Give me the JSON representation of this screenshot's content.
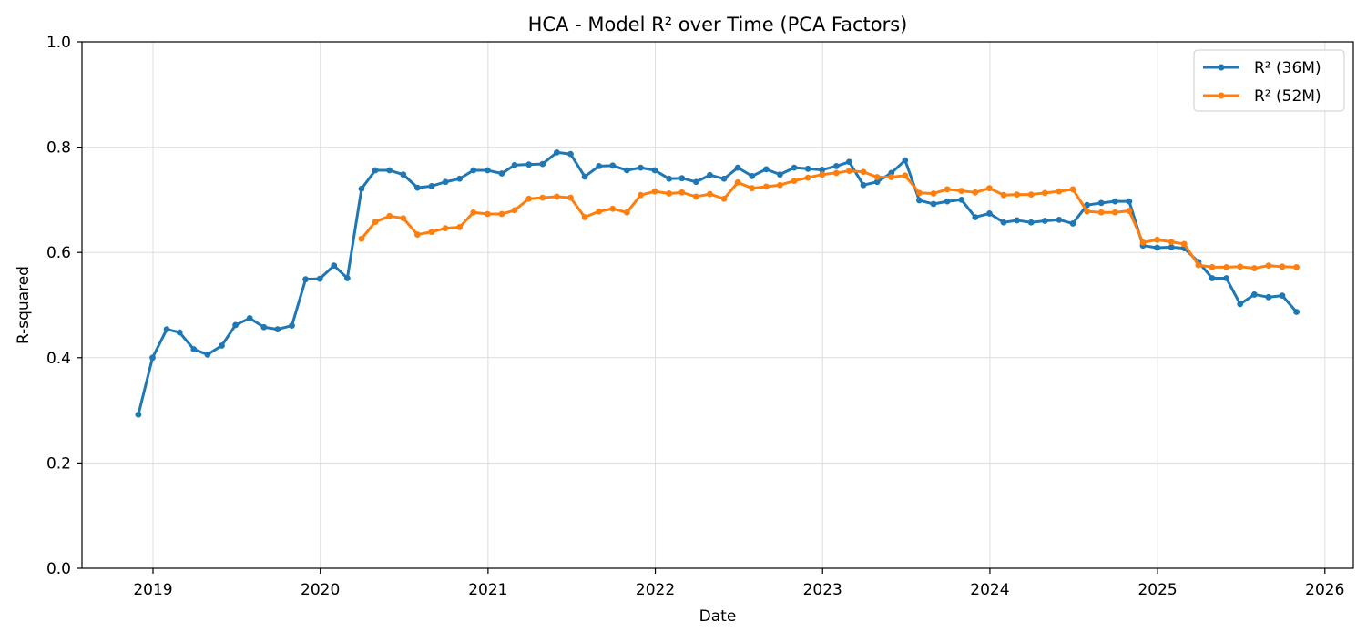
{
  "chart_data": {
    "type": "line",
    "title": "HCA - Model R² over Time (PCA Factors)",
    "xlabel": "Date",
    "ylabel": "R-squared",
    "xlim": [
      "2018-07-30",
      "2026-03-04"
    ],
    "ylim": [
      0.0,
      1.0
    ],
    "x_ticks": [
      "2019",
      "2020",
      "2021",
      "2022",
      "2023",
      "2024",
      "2025",
      "2026"
    ],
    "y_ticks": [
      "0.0",
      "0.2",
      "0.4",
      "0.6",
      "0.8",
      "1.0"
    ],
    "grid": true,
    "legend_position": "top-right",
    "series": [
      {
        "name": "R² (36M)",
        "color": "#1f77b4",
        "x": [
          "2018-11-30",
          "2018-12-31",
          "2019-01-31",
          "2019-02-28",
          "2019-03-31",
          "2019-04-30",
          "2019-05-31",
          "2019-06-30",
          "2019-07-31",
          "2019-08-31",
          "2019-09-30",
          "2019-10-31",
          "2019-11-30",
          "2019-12-31",
          "2020-01-31",
          "2020-02-29",
          "2020-03-31",
          "2020-04-30",
          "2020-05-31",
          "2020-06-30",
          "2020-07-31",
          "2020-08-31",
          "2020-09-30",
          "2020-10-31",
          "2020-11-30",
          "2020-12-31",
          "2021-01-31",
          "2021-02-28",
          "2021-03-31",
          "2021-04-30",
          "2021-05-31",
          "2021-06-30",
          "2021-07-31",
          "2021-08-31",
          "2021-09-30",
          "2021-10-31",
          "2021-11-30",
          "2021-12-31",
          "2022-01-31",
          "2022-02-28",
          "2022-03-31",
          "2022-04-30",
          "2022-05-31",
          "2022-06-30",
          "2022-07-31",
          "2022-08-31",
          "2022-09-30",
          "2022-10-31",
          "2022-11-30",
          "2022-12-31",
          "2023-01-31",
          "2023-02-28",
          "2023-03-31",
          "2023-04-30",
          "2023-05-31",
          "2023-06-30",
          "2023-07-31",
          "2023-08-31",
          "2023-09-30",
          "2023-10-31",
          "2023-11-30",
          "2023-12-31",
          "2024-01-31",
          "2024-02-29",
          "2024-03-31",
          "2024-04-30",
          "2024-05-31",
          "2024-06-30",
          "2024-07-31",
          "2024-08-31",
          "2024-09-30",
          "2024-10-31",
          "2024-11-30",
          "2024-12-31",
          "2025-01-31",
          "2025-02-28",
          "2025-03-31",
          "2025-04-30",
          "2025-05-31",
          "2025-06-30",
          "2025-07-31",
          "2025-08-31",
          "2025-09-30",
          "2025-10-31"
        ],
        "values": [
          0.292,
          0.4,
          0.454,
          0.448,
          0.416,
          0.406,
          0.423,
          0.462,
          0.475,
          0.458,
          0.454,
          0.461,
          0.549,
          0.55,
          0.575,
          0.551,
          0.721,
          0.756,
          0.756,
          0.748,
          0.723,
          0.726,
          0.734,
          0.74,
          0.756,
          0.756,
          0.75,
          0.766,
          0.767,
          0.768,
          0.79,
          0.787,
          0.744,
          0.764,
          0.765,
          0.756,
          0.761,
          0.756,
          0.74,
          0.741,
          0.734,
          0.747,
          0.74,
          0.761,
          0.745,
          0.758,
          0.748,
          0.761,
          0.759,
          0.757,
          0.764,
          0.772,
          0.728,
          0.734,
          0.751,
          0.775,
          0.699,
          0.692,
          0.697,
          0.7,
          0.667,
          0.674,
          0.657,
          0.661,
          0.657,
          0.66,
          0.662,
          0.655,
          0.69,
          0.694,
          0.697,
          0.697,
          0.613,
          0.609,
          0.61,
          0.608,
          0.582,
          0.551,
          0.551,
          0.502,
          0.52,
          0.515,
          0.518,
          0.487
        ]
      },
      {
        "name": "R² (52M)",
        "color": "#ff7f0e",
        "x": [
          "2020-03-31",
          "2020-04-30",
          "2020-05-31",
          "2020-06-30",
          "2020-07-31",
          "2020-08-31",
          "2020-09-30",
          "2020-10-31",
          "2020-11-30",
          "2020-12-31",
          "2021-01-31",
          "2021-02-28",
          "2021-03-31",
          "2021-04-30",
          "2021-05-31",
          "2021-06-30",
          "2021-07-31",
          "2021-08-31",
          "2021-09-30",
          "2021-10-31",
          "2021-11-30",
          "2021-12-31",
          "2022-01-31",
          "2022-02-28",
          "2022-03-31",
          "2022-04-30",
          "2022-05-31",
          "2022-06-30",
          "2022-07-31",
          "2022-08-31",
          "2022-09-30",
          "2022-10-31",
          "2022-11-30",
          "2022-12-31",
          "2023-01-31",
          "2023-02-28",
          "2023-03-31",
          "2023-04-30",
          "2023-05-31",
          "2023-06-30",
          "2023-07-31",
          "2023-08-31",
          "2023-09-30",
          "2023-10-31",
          "2023-11-30",
          "2023-12-31",
          "2024-01-31",
          "2024-02-29",
          "2024-03-31",
          "2024-04-30",
          "2024-05-31",
          "2024-06-30",
          "2024-07-31",
          "2024-08-31",
          "2024-09-30",
          "2024-10-31",
          "2024-11-30",
          "2024-12-31",
          "2025-01-31",
          "2025-02-28",
          "2025-03-31",
          "2025-04-30",
          "2025-05-31",
          "2025-06-30",
          "2025-07-31",
          "2025-08-31",
          "2025-09-30",
          "2025-10-31"
        ],
        "values": [
          0.626,
          0.658,
          0.669,
          0.665,
          0.634,
          0.639,
          0.646,
          0.648,
          0.676,
          0.673,
          0.673,
          0.68,
          0.702,
          0.704,
          0.706,
          0.704,
          0.667,
          0.678,
          0.683,
          0.676,
          0.709,
          0.716,
          0.712,
          0.714,
          0.706,
          0.711,
          0.702,
          0.733,
          0.722,
          0.725,
          0.728,
          0.736,
          0.742,
          0.748,
          0.751,
          0.755,
          0.753,
          0.743,
          0.743,
          0.746,
          0.713,
          0.712,
          0.72,
          0.717,
          0.714,
          0.722,
          0.709,
          0.71,
          0.71,
          0.713,
          0.716,
          0.72,
          0.678,
          0.676,
          0.676,
          0.679,
          0.619,
          0.624,
          0.62,
          0.616,
          0.576,
          0.572,
          0.572,
          0.573,
          0.57,
          0.575,
          0.573,
          0.572
        ]
      }
    ]
  }
}
